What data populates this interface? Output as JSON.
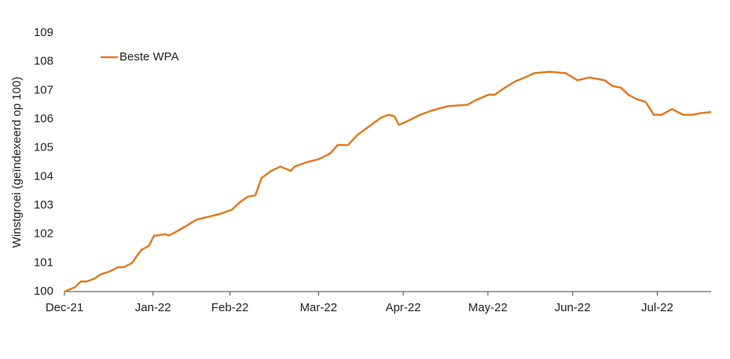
{
  "chart_data": {
    "type": "line",
    "y_label": "Winstgroei (geïndexeerd op 100)",
    "x": [
      0,
      2.7,
      4.3,
      5.7,
      7.8,
      9.4,
      11.8,
      13.9,
      15.5,
      17.6,
      18.6,
      20.0,
      22.0,
      23.3,
      24.1,
      26.1,
      27.1,
      28.6,
      31.2,
      34.3,
      37.3,
      40.4,
      43.5,
      45.5,
      47.6,
      49.6,
      51.2,
      53.7,
      56.1,
      58.8,
      59.8,
      62.9,
      65.9,
      69.0,
      71.0,
      73.7,
      76.1,
      79.2,
      82.2,
      84.3,
      85.7,
      86.9,
      89.4,
      92.4,
      95.5,
      99.6,
      104.7,
      106.7,
      110.2,
      111.8,
      113.9,
      116.9,
      119.6,
      122.0,
      126.1,
      130.2,
      133.3,
      136.3,
      140.4,
      142.4,
      144.5,
      146.5,
      148.6,
      151.0,
      153.1,
      155.1,
      157.8,
      160.8,
      162.9,
      165.0,
      168.0
    ],
    "series": [
      {
        "name": "Beste WPA",
        "color": "#e07b20",
        "values": [
          100.0,
          100.15,
          100.35,
          100.35,
          100.45,
          100.6,
          100.7,
          100.85,
          100.85,
          101.0,
          101.2,
          101.45,
          101.6,
          101.95,
          101.95,
          102.0,
          101.95,
          102.05,
          102.25,
          102.5,
          102.6,
          102.7,
          102.85,
          103.1,
          103.3,
          103.35,
          103.95,
          104.2,
          104.35,
          104.2,
          104.35,
          104.5,
          104.6,
          104.8,
          105.1,
          105.1,
          105.45,
          105.75,
          106.05,
          106.15,
          106.1,
          105.8,
          105.95,
          106.15,
          106.3,
          106.45,
          106.5,
          106.65,
          106.85,
          106.85,
          107.05,
          107.3,
          107.45,
          107.6,
          107.65,
          107.6,
          107.35,
          107.45,
          107.35,
          107.15,
          107.1,
          106.85,
          106.7,
          106.6,
          106.15,
          106.15,
          106.35,
          106.15,
          106.15,
          106.2,
          106.25
        ]
      }
    ],
    "xlim": [
      0,
      168
    ],
    "xticks": [
      {
        "value": 0,
        "label": "Dec-21"
      },
      {
        "value": 23,
        "label": "Jan-22"
      },
      {
        "value": 43,
        "label": "Feb-22"
      },
      {
        "value": 66,
        "label": "Mar-22"
      },
      {
        "value": 88,
        "label": "Apr-22"
      },
      {
        "value": 110,
        "label": "May-22"
      },
      {
        "value": 132,
        "label": "Jun-22"
      },
      {
        "value": 154,
        "label": "Jul-22"
      }
    ],
    "ylim": [
      100,
      109
    ],
    "yticks": [
      100,
      101,
      102,
      103,
      104,
      105,
      106,
      107,
      108,
      109
    ],
    "legend": "top-left"
  }
}
